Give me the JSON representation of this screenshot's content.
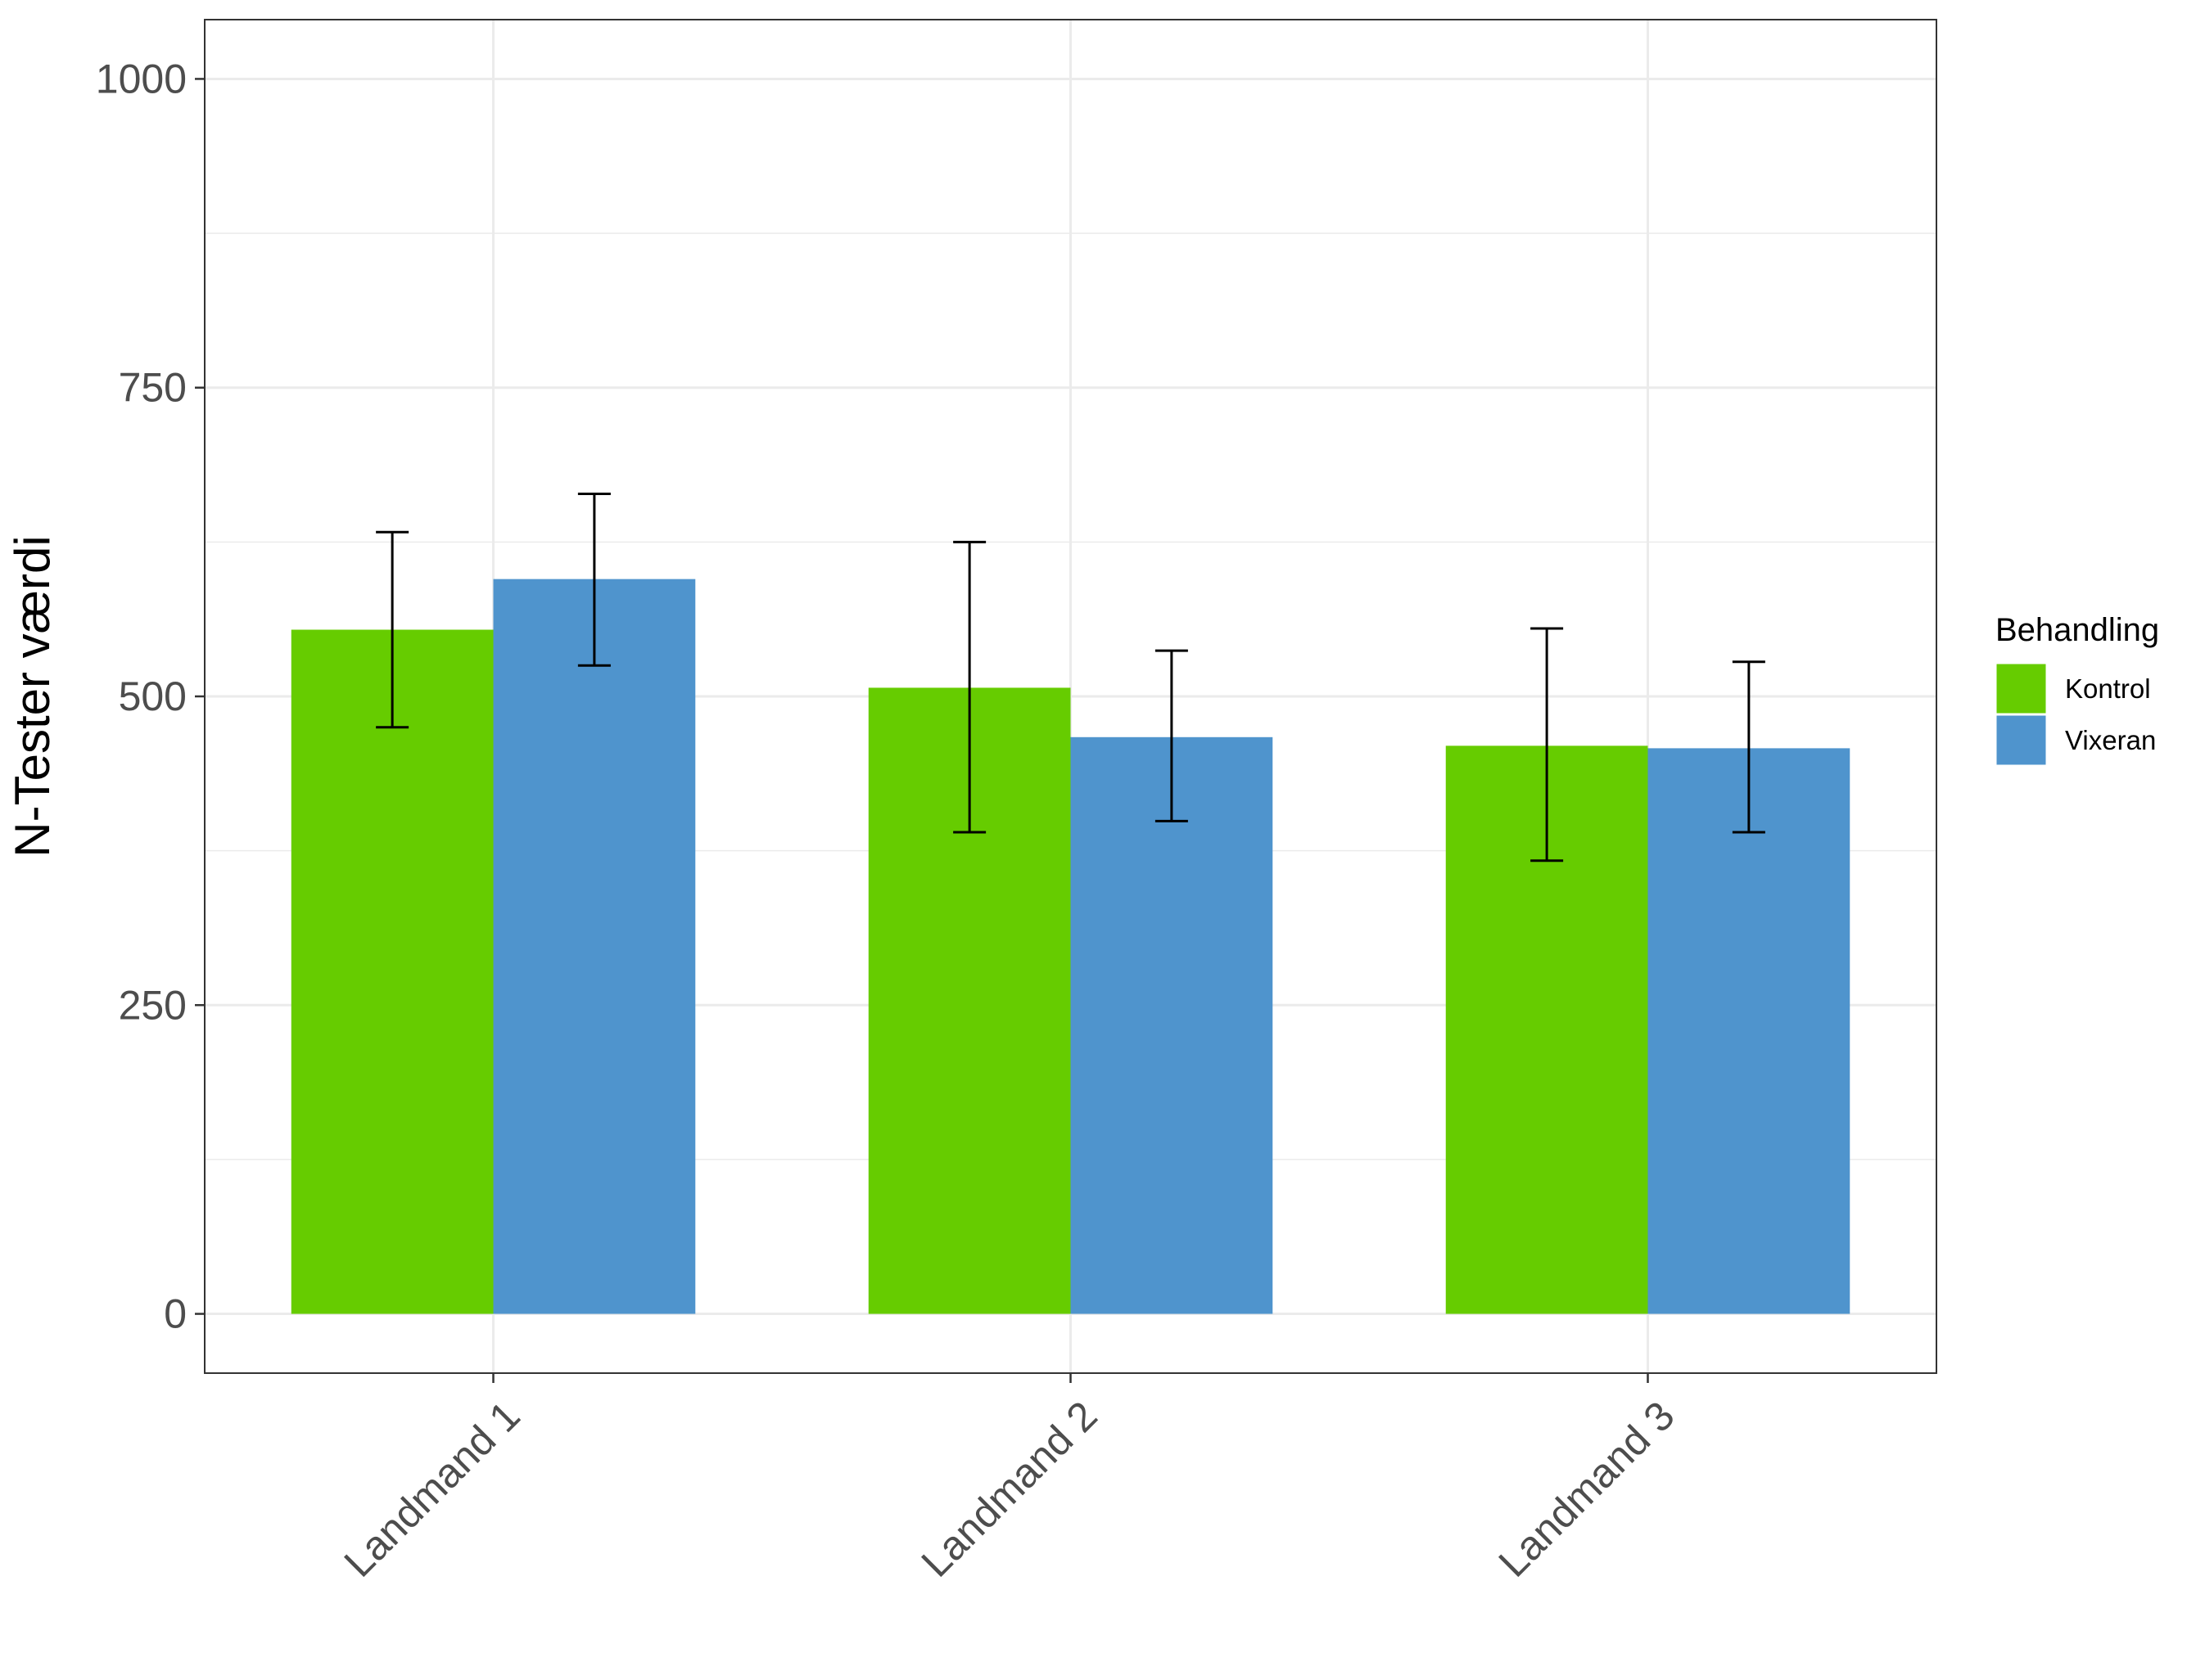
{
  "chart_data": {
    "type": "bar",
    "title": "",
    "xlabel": "",
    "ylabel": "N-Tester værdi",
    "ylim": [
      -48,
      1048
    ],
    "yticks": [
      "0",
      "250",
      "500",
      "750",
      "1000"
    ],
    "categories": [
      "Landmand 1",
      "Landmand 2",
      "Landmand 3"
    ],
    "legend_title": "Behandling",
    "legend_position": "right",
    "grid": true,
    "series": [
      {
        "name": "Kontrol",
        "color": "#66cc00",
        "values": [
          554,
          507,
          460
        ],
        "error_low": [
          475,
          390,
          367
        ],
        "error_high": [
          633,
          625,
          555
        ]
      },
      {
        "name": "Vixeran",
        "color": "#4f94cd",
        "values": [
          595,
          467,
          458
        ],
        "error_low": [
          525,
          399,
          390
        ],
        "error_high": [
          664,
          537,
          528
        ]
      }
    ]
  }
}
